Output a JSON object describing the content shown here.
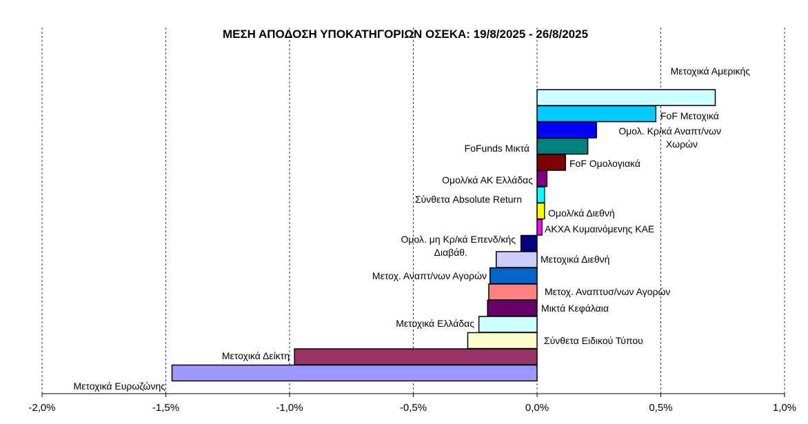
{
  "chart_data": {
    "type": "bar",
    "orientation": "horizontal",
    "title": "ΜΕΣΗ ΑΠΟΔΟΣΗ ΥΠΟΚΑΤΗΓΟΡΙΩΝ ΟΣΕΚΑ: 19/8/2025 - 26/8/2025",
    "xlim": [
      -2.0,
      1.0
    ],
    "x_ticks": [
      "-2,0%",
      "-1,5%",
      "-1,0%",
      "-0,5%",
      "0,0%",
      "0,5%",
      "1,0%"
    ],
    "grid": "vertical dashed",
    "bars": [
      {
        "label": "Μετοχικά Αμερικής",
        "value": 0.72,
        "color": "#ccffff"
      },
      {
        "label": "FoF Μετοχικά",
        "value": 0.48,
        "color": "#00ccff"
      },
      {
        "label": "Ομολ. Κρ/κά Αναπτ/νων Χωρών",
        "value": 0.24,
        "color": "#0000ff"
      },
      {
        "label": "FoFunds Μικτά",
        "value": 0.205,
        "color": "#008080"
      },
      {
        "label": "FoF Ομολογιακά",
        "value": 0.115,
        "color": "#800000"
      },
      {
        "label": "Ομολ/κά ΑΚ Ελλάδας",
        "value": 0.04,
        "color": "#800080"
      },
      {
        "label": "Σύνθετα Absolute Return",
        "value": 0.03,
        "color": "#00ffff"
      },
      {
        "label": "Ομολ/κά Διεθνή",
        "value": 0.03,
        "color": "#ffff00"
      },
      {
        "label": "ΑΚΧΑ Κυμαινόμενης ΚΑΕ",
        "value": 0.02,
        "color": "#ff00ff"
      },
      {
        "label": "Ομολ. μη Κρ/κά Επενδ/κής Διαβάθ.",
        "value": -0.065,
        "color": "#000080"
      },
      {
        "label": "Μετοχικά Διεθνή",
        "value": -0.165,
        "color": "#ccccff"
      },
      {
        "label": "Μετοχ. Αναπτ/νων Αγορών",
        "value": -0.19,
        "color": "#0066cc"
      },
      {
        "label": "Μετοχ. Αναπτυσ/νων Αγορών",
        "value": -0.195,
        "color": "#ff8080"
      },
      {
        "label": "Μικτά Κεφάλαια",
        "value": -0.2,
        "color": "#660066"
      },
      {
        "label": "Μετοχικά Ελλάδας",
        "value": -0.235,
        "color": "#ccffff"
      },
      {
        "label": "Σύνθετα Ειδικού Τύπου",
        "value": -0.28,
        "color": "#ffffcc"
      },
      {
        "label": "Μετοχικά Δείκτη",
        "value": -0.98,
        "color": "#993366"
      },
      {
        "label": "Μετοχικά Ευρωζώνης",
        "value": -1.475,
        "color": "#9999ff"
      }
    ]
  }
}
